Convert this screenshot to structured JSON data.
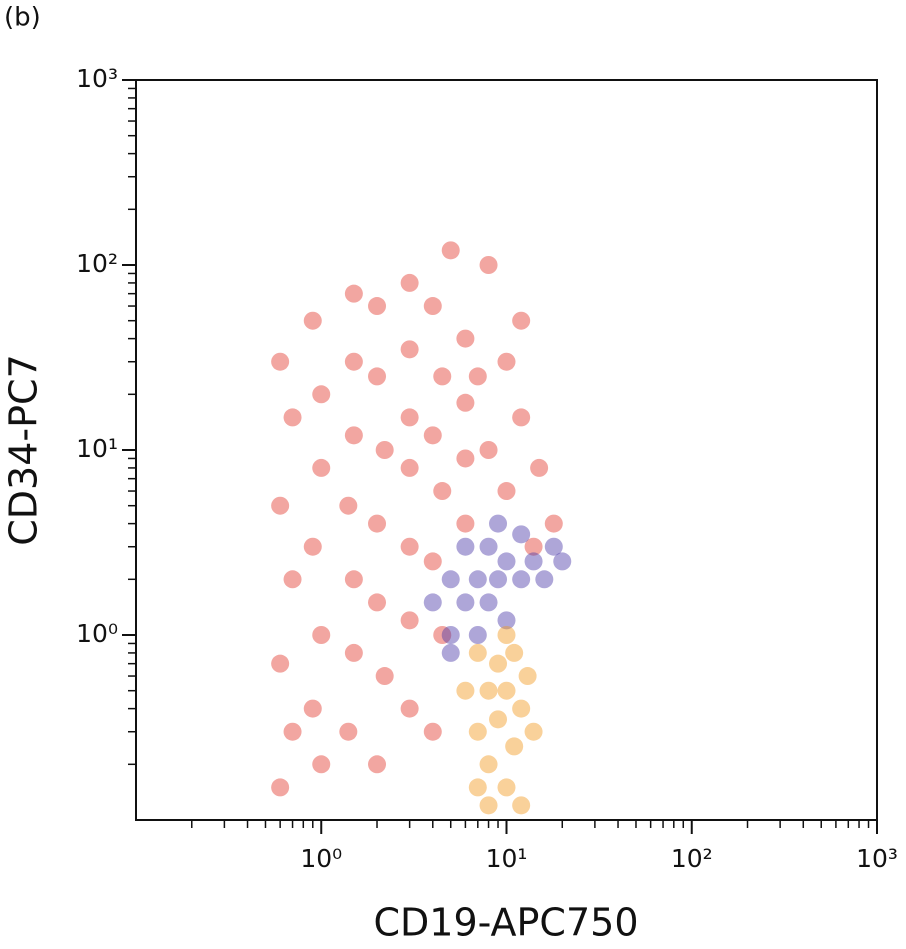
{
  "chart_data": {
    "type": "scatter",
    "panel_label": "(b)",
    "xlabel": "CD19-APC750",
    "ylabel": "CD34-PC7",
    "xlog": true,
    "ylog": true,
    "xlim": [
      0.1,
      1000
    ],
    "ylim": [
      0.1,
      1000
    ],
    "xticks": [
      {
        "value": 1,
        "label": "10⁰"
      },
      {
        "value": 10,
        "label": "10¹"
      },
      {
        "value": 100,
        "label": "10²"
      },
      {
        "value": 1000,
        "label": "10³"
      }
    ],
    "yticks": [
      {
        "value": 1,
        "label": "10⁰"
      },
      {
        "value": 10,
        "label": "10¹"
      },
      {
        "value": 100,
        "label": "10²"
      },
      {
        "value": 1000,
        "label": "10³"
      }
    ],
    "xminorticks": [
      0.2,
      0.3,
      0.4,
      0.5,
      0.6,
      0.7,
      0.8,
      0.9,
      2,
      3,
      4,
      5,
      6,
      7,
      8,
      9,
      20,
      30,
      40,
      50,
      60,
      70,
      80,
      90,
      200,
      300,
      400,
      500,
      600,
      700,
      800,
      900
    ],
    "yminorticks": [
      0.2,
      0.3,
      0.4,
      0.5,
      0.6,
      0.7,
      0.8,
      0.9,
      2,
      3,
      4,
      5,
      6,
      7,
      8,
      9,
      20,
      30,
      40,
      50,
      60,
      70,
      80,
      90,
      200,
      300,
      400,
      500,
      600,
      700,
      800,
      900
    ],
    "series": [
      {
        "color": "#e23a2e",
        "x": [
          0.6,
          0.7,
          0.6,
          0.7,
          0.6,
          0.7,
          0.6,
          0.9,
          1,
          1,
          0.9,
          1,
          0.9,
          1,
          1.5,
          1.5,
          1.5,
          1.4,
          1.5,
          1.5,
          1.4,
          2,
          2,
          2.2,
          2,
          2,
          2.2,
          2,
          3,
          3,
          3,
          3,
          3,
          3,
          3,
          4,
          4.5,
          4,
          4.5,
          4,
          4.5,
          4,
          6,
          6,
          6,
          6,
          7,
          8,
          10,
          10,
          12,
          15,
          18,
          12,
          8,
          5,
          14
        ],
        "values": [
          30,
          15,
          5,
          2,
          0.7,
          0.3,
          0.15,
          50,
          20,
          8,
          3,
          1,
          0.4,
          0.2,
          70,
          30,
          12,
          5,
          2,
          0.8,
          0.3,
          60,
          25,
          10,
          4,
          1.5,
          0.6,
          0.2,
          80,
          35,
          15,
          8,
          3,
          1.2,
          0.4,
          60,
          25,
          12,
          6,
          2.5,
          1,
          0.3,
          40,
          18,
          9,
          4,
          25,
          10,
          30,
          6,
          15,
          8,
          4,
          50,
          100,
          120,
          3
        ]
      },
      {
        "color": "#4b3aa8",
        "x": [
          4,
          5,
          5,
          6,
          6,
          7,
          7,
          8,
          8,
          9,
          10,
          10,
          12,
          12,
          14,
          16,
          18,
          5,
          9,
          20
        ],
        "values": [
          1.5,
          2,
          1,
          1.5,
          3,
          2,
          1,
          1.5,
          3,
          2,
          2.5,
          1.2,
          2,
          3.5,
          2.5,
          2,
          3,
          0.8,
          4,
          2.5
        ]
      },
      {
        "color": "#f29a1e",
        "x": [
          6,
          7,
          7,
          8,
          8,
          9,
          9,
          10,
          10,
          11,
          11,
          12,
          13,
          8,
          7,
          12,
          14,
          10
        ],
        "values": [
          0.5,
          0.8,
          0.3,
          0.5,
          0.2,
          0.7,
          0.35,
          0.5,
          0.15,
          0.8,
          0.25,
          0.4,
          0.6,
          0.12,
          0.15,
          0.12,
          0.3,
          1
        ]
      }
    ]
  }
}
